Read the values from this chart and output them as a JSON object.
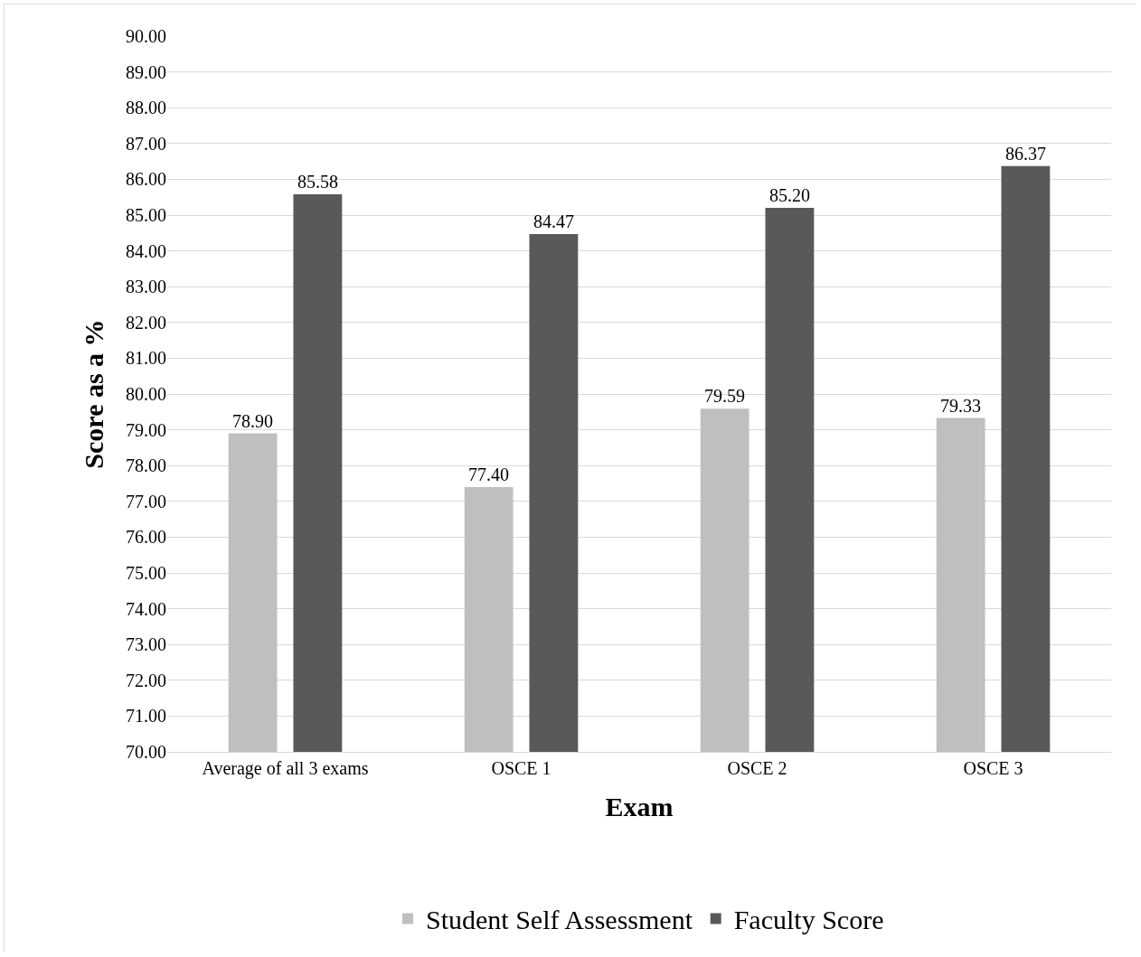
{
  "chart_data": {
    "type": "bar",
    "xlabel": "Exam",
    "ylabel": "Score as a %",
    "categories": [
      "Average of all 3 exams",
      "OSCE 1",
      "OSCE 2",
      "OSCE 3"
    ],
    "series": [
      {
        "name": "Student Self Assessment",
        "color": "#bfbfbf",
        "values": [
          78.9,
          77.4,
          79.59,
          79.33
        ],
        "value_labels": [
          "78.90",
          "77.40",
          "79.59",
          "79.33"
        ]
      },
      {
        "name": "Faculty Score",
        "color": "#595959",
        "values": [
          85.58,
          84.47,
          85.2,
          86.37
        ],
        "value_labels": [
          "85.58",
          "84.47",
          "85.20",
          "86.37"
        ]
      }
    ],
    "ylim": [
      70,
      90
    ],
    "yticks": [
      {
        "value": 70,
        "label": "70.00"
      },
      {
        "value": 71,
        "label": "71.00"
      },
      {
        "value": 72,
        "label": "72.00"
      },
      {
        "value": 73,
        "label": "73.00"
      },
      {
        "value": 74,
        "label": "74.00"
      },
      {
        "value": 75,
        "label": "75.00"
      },
      {
        "value": 76,
        "label": "76.00"
      },
      {
        "value": 77,
        "label": "77.00"
      },
      {
        "value": 78,
        "label": "78.00"
      },
      {
        "value": 79,
        "label": "79.00"
      },
      {
        "value": 80,
        "label": "80.00"
      },
      {
        "value": 81,
        "label": "81.00"
      },
      {
        "value": 82,
        "label": "82.00"
      },
      {
        "value": 83,
        "label": "83.00"
      },
      {
        "value": 84,
        "label": "84.00"
      },
      {
        "value": 85,
        "label": "85.00"
      },
      {
        "value": 86,
        "label": "86.00"
      },
      {
        "value": 87,
        "label": "87.00"
      },
      {
        "value": 88,
        "label": "88.00"
      },
      {
        "value": 89,
        "label": "89.00"
      },
      {
        "value": 90,
        "label": "90.00"
      }
    ],
    "grid": "y",
    "legend": "bottom"
  }
}
